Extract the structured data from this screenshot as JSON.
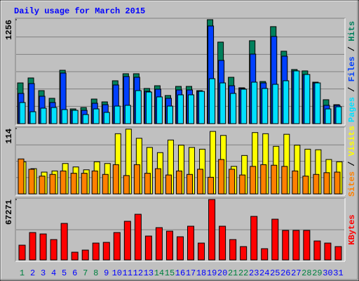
{
  "chart_data": [
    {
      "type": "bar",
      "title": "Daily usage for March 2015",
      "ylim": [
        0,
        1256
      ],
      "yticks": [
        1256
      ],
      "grid_divisions": 6,
      "legend_separator": " / ",
      "series": [
        {
          "name": "Hits",
          "color": "#00805c",
          "values": [
            492,
            552,
            399,
            306,
            645,
            178,
            195,
            297,
            263,
            518,
            603,
            603,
            425,
            458,
            340,
            450,
            450,
            399,
            1256,
            985,
            560,
            433,
            1002,
            509,
            1172,
            875,
            654,
            637,
            501,
            289,
            229
          ]
        },
        {
          "name": "Files",
          "color": "#0040ff",
          "values": [
            365,
            484,
            331,
            255,
            611,
            161,
            161,
            246,
            229,
            467,
            569,
            560,
            391,
            416,
            306,
            407,
            407,
            390,
            1180,
            764,
            458,
            425,
            840,
            492,
            1053,
            815,
            637,
            594,
            492,
            221,
            221
          ]
        },
        {
          "name": "Pages",
          "color": "#00e0ff",
          "values": [
            255,
            144,
            187,
            195,
            170,
            161,
            110,
            178,
            136,
            212,
            221,
            399,
            382,
            323,
            212,
            348,
            348,
            390,
            543,
            492,
            365,
            416,
            501,
            425,
            475,
            518,
            637,
            594,
            492,
            178,
            204
          ]
        }
      ]
    },
    {
      "type": "bar",
      "ylim": [
        0,
        114
      ],
      "yticks": [
        114
      ],
      "grid_divisions": 4,
      "legend_separator": " / ",
      "series": [
        {
          "name": "Visits",
          "color": "#ffff00",
          "values": [
            56,
            44,
            38,
            40,
            53,
            47,
            42,
            56,
            53,
            105,
            113,
            97,
            81,
            72,
            94,
            85,
            81,
            78,
            109,
            102,
            48,
            67,
            107,
            105,
            83,
            104,
            85,
            78,
            77,
            60,
            56
          ]
        },
        {
          "name": "Sites",
          "color": "#ff8000",
          "values": [
            61,
            43,
            31,
            34,
            40,
            36,
            36,
            40,
            34,
            51,
            32,
            51,
            36,
            44,
            33,
            40,
            34,
            43,
            29,
            60,
            43,
            33,
            48,
            51,
            50,
            48,
            40,
            31,
            34,
            37,
            38
          ]
        }
      ]
    },
    {
      "type": "bar",
      "ylim": [
        0,
        67271
      ],
      "yticks": [
        67271
      ],
      "grid_divisions": 2,
      "legend_separator": " / ",
      "categories": [
        "1",
        "2",
        "3",
        "4",
        "5",
        "6",
        "7",
        "8",
        "9",
        "10",
        "11",
        "12",
        "13",
        "14",
        "15",
        "16",
        "17",
        "18",
        "19",
        "20",
        "21",
        "22",
        "23",
        "24",
        "25",
        "26",
        "27",
        "28",
        "29",
        "30",
        "31"
      ],
      "category_colors": [
        "#008040",
        "#0000ff",
        "#0000ff",
        "#0000ff",
        "#0000ff",
        "#0000ff",
        "#008040",
        "#008040",
        "#0000ff",
        "#0000ff",
        "#0000ff",
        "#0000ff",
        "#0000ff",
        "#008040",
        "#008040",
        "#0000ff",
        "#0000ff",
        "#0000ff",
        "#0000ff",
        "#0000ff",
        "#008040",
        "#008040",
        "#0000ff",
        "#0000ff",
        "#0000ff",
        "#0000ff",
        "#0000ff",
        "#008040",
        "#008040",
        "#0000ff",
        "#0000ff"
      ],
      "series": [
        {
          "name": "KBytes",
          "color": "#ff0000",
          "values": [
            16422,
            30498,
            28934,
            22678,
            40664,
            8602,
            10948,
            18768,
            19550,
            30498,
            43010,
            50830,
            26588,
            35972,
            32062,
            25806,
            37536,
            18768,
            67271,
            37536,
            22678,
            14858,
            48484,
            12512,
            45356,
            32844,
            32844,
            32844,
            21114,
            18768,
            14858
          ]
        }
      ]
    }
  ]
}
